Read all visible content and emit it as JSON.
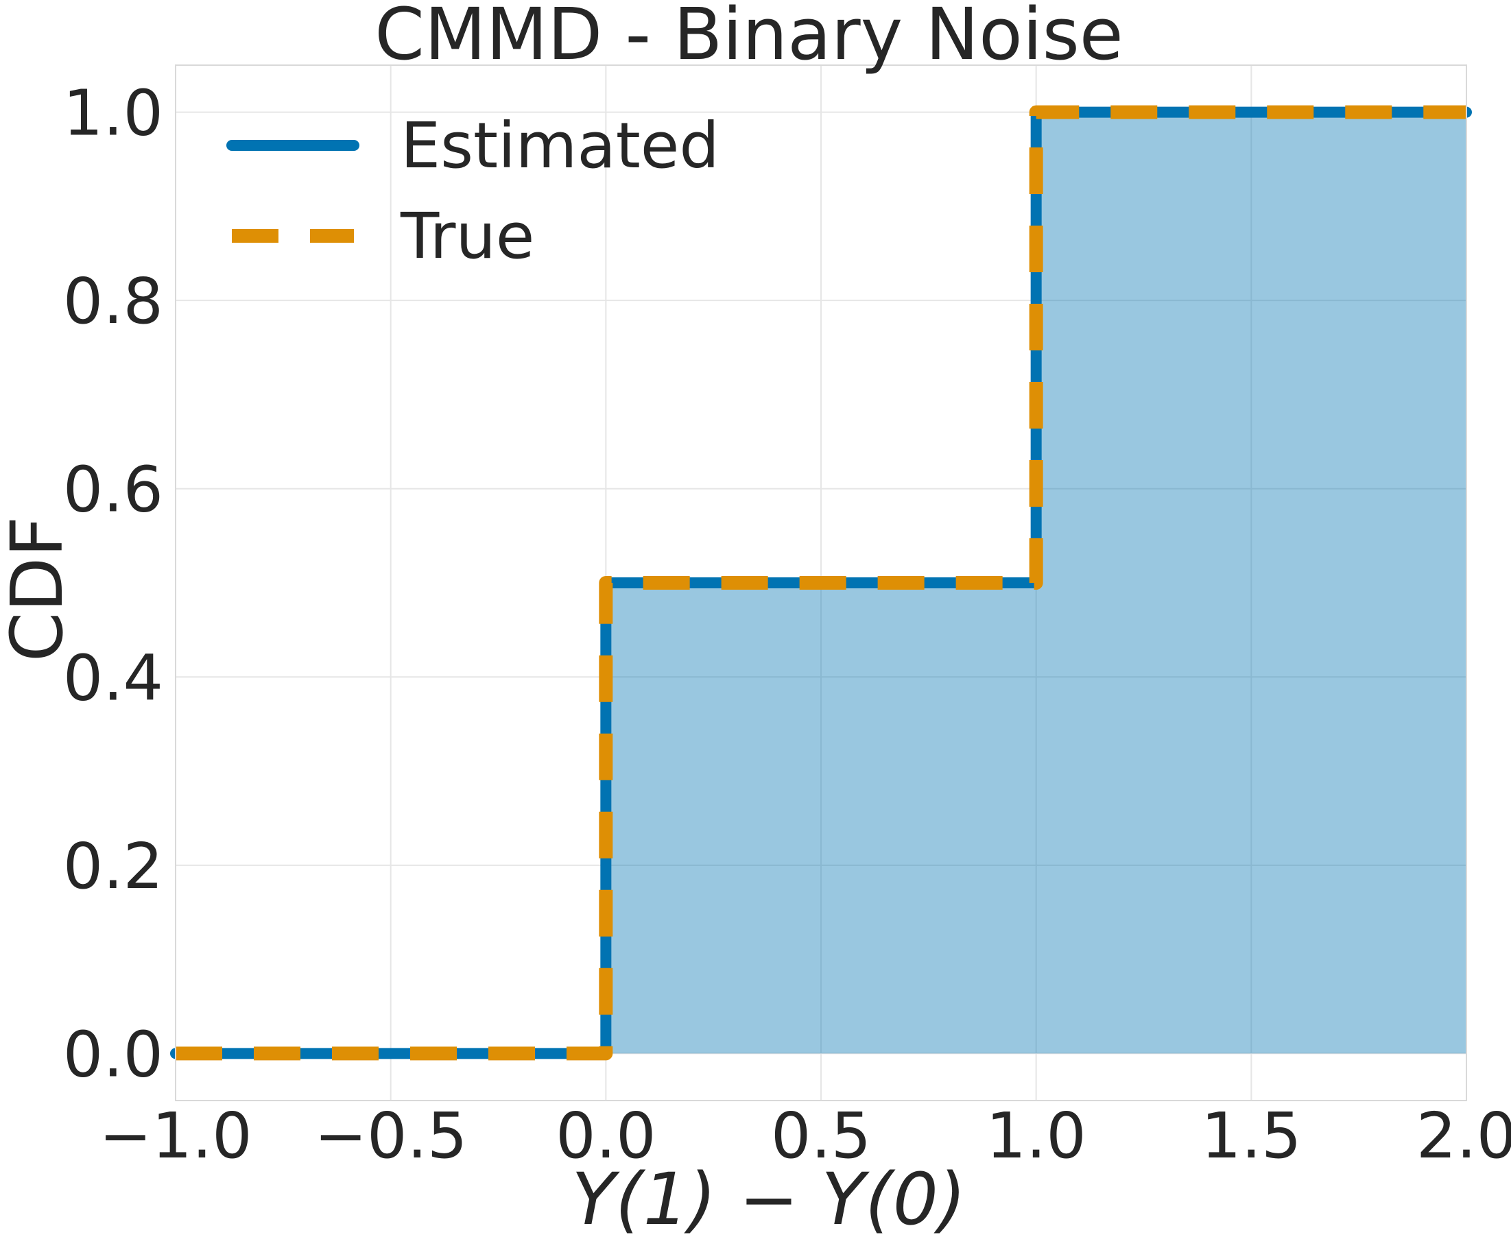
{
  "chart_data": {
    "type": "line",
    "title": "CMMD - Binary Noise",
    "xlabel": "Y(1) − Y(0)",
    "ylabel": "CDF",
    "xlim": [
      -1.0,
      2.0
    ],
    "ylim": [
      -0.05,
      1.05
    ],
    "x_ticks": [
      -1.0,
      -0.5,
      0.0,
      0.5,
      1.0,
      1.5,
      2.0
    ],
    "x_tick_labels": [
      "−1.0",
      "−0.5",
      "0.0",
      "0.5",
      "1.0",
      "1.5",
      "2.0"
    ],
    "y_ticks": [
      0.0,
      0.2,
      0.4,
      0.6,
      0.8,
      1.0
    ],
    "y_tick_labels": [
      "0.0",
      "0.2",
      "0.4",
      "0.6",
      "0.8",
      "1.0"
    ],
    "grid": true,
    "legend_position": "upper-left",
    "series": [
      {
        "name": "Estimated",
        "style": "solid",
        "color": "#0173b2",
        "fill": true,
        "fill_color": "#0173b2",
        "x": [
          -1.0,
          0.0,
          0.0,
          1.0,
          1.0,
          2.0
        ],
        "y": [
          0.0,
          0.0,
          0.5,
          0.5,
          1.0,
          1.0
        ]
      },
      {
        "name": "True",
        "style": "dashed",
        "color": "#de8f05",
        "x": [
          -1.0,
          0.0,
          0.0,
          1.0,
          1.0,
          2.0
        ],
        "y": [
          0.0,
          0.0,
          0.5,
          0.5,
          1.0,
          1.0
        ]
      }
    ]
  }
}
